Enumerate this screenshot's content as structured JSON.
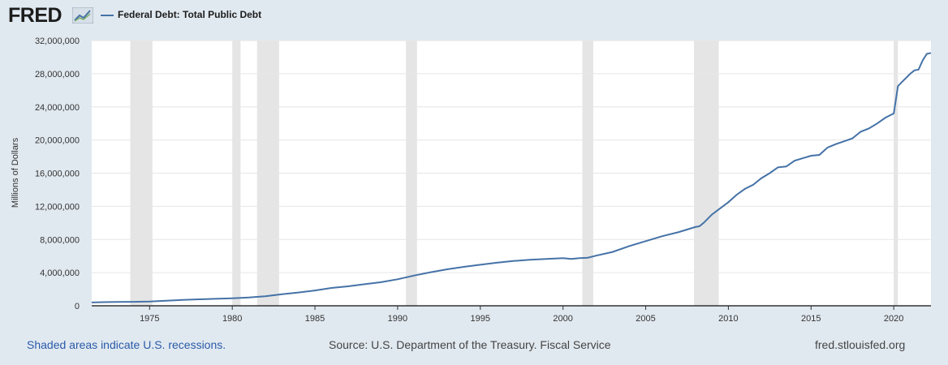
{
  "header": {
    "logo_text": "FRED",
    "series_title": "Federal Debt: Total Public Debt"
  },
  "footer": {
    "recession_note": "Shaded areas indicate U.S. recessions.",
    "source": "Source: U.S. Department of the Treasury. Fiscal Service",
    "site": "fred.stlouisfed.org"
  },
  "colors": {
    "line": "#4572a7",
    "recession": "#e5e5e5",
    "plot_background": "#ffffff",
    "page_background": "#e1e9f0"
  },
  "chart_data": {
    "type": "line",
    "title": "Federal Debt: Total Public Debt",
    "xlabel": "",
    "ylabel": "Millions of Dollars",
    "xlim": [
      1971.5,
      2022.25
    ],
    "ylim": [
      0,
      32000000
    ],
    "y_ticks": [
      0,
      4000000,
      8000000,
      12000000,
      16000000,
      20000000,
      24000000,
      28000000,
      32000000
    ],
    "y_tick_labels": [
      "0",
      "4,000,000",
      "8,000,000",
      "12,000,000",
      "16,000,000",
      "20,000,000",
      "24,000,000",
      "28,000,000",
      "32,000,000"
    ],
    "x_ticks": [
      1975,
      1980,
      1985,
      1990,
      1995,
      2000,
      2005,
      2010,
      2015,
      2020
    ],
    "x_tick_labels": [
      "1975",
      "1980",
      "1985",
      "1990",
      "1995",
      "2000",
      "2005",
      "2010",
      "2015",
      "2020"
    ],
    "recessions": [
      [
        1973.83,
        1975.17
      ],
      [
        1980.0,
        1980.5
      ],
      [
        1981.5,
        1982.83
      ],
      [
        1990.5,
        1991.17
      ],
      [
        2001.17,
        2001.83
      ],
      [
        2007.92,
        2009.42
      ],
      [
        2020.0,
        2020.25
      ]
    ],
    "series": [
      {
        "name": "Federal Debt: Total Public Debt",
        "x": [
          1971.5,
          1972.0,
          1973.0,
          1974.0,
          1975.0,
          1976.0,
          1977.0,
          1978.0,
          1979.0,
          1980.0,
          1981.0,
          1982.0,
          1983.0,
          1984.0,
          1985.0,
          1986.0,
          1987.0,
          1988.0,
          1989.0,
          1990.0,
          1991.0,
          1992.0,
          1993.0,
          1994.0,
          1995.0,
          1996.0,
          1997.0,
          1998.0,
          1999.0,
          2000.0,
          2000.5,
          2001.0,
          2001.5,
          2002.0,
          2003.0,
          2004.0,
          2005.0,
          2006.0,
          2007.0,
          2008.0,
          2008.25,
          2008.5,
          2009.0,
          2010.0,
          2010.5,
          2011.0,
          2011.5,
          2012.0,
          2012.5,
          2013.0,
          2013.5,
          2014.0,
          2014.5,
          2015.0,
          2015.5,
          2016.0,
          2016.5,
          2017.0,
          2017.5,
          2018.0,
          2018.5,
          2019.0,
          2019.5,
          2020.0,
          2020.25,
          2020.5,
          2021.0,
          2021.25,
          2021.5,
          2021.75,
          2022.0,
          2022.25
        ],
        "values": [
          400000,
          430000,
          460000,
          480000,
          520000,
          620000,
          700000,
          780000,
          840000,
          900000,
          1000000,
          1150000,
          1400000,
          1600000,
          1850000,
          2150000,
          2350000,
          2600000,
          2850000,
          3200000,
          3650000,
          4050000,
          4400000,
          4700000,
          4950000,
          5200000,
          5400000,
          5550000,
          5650000,
          5750000,
          5650000,
          5750000,
          5800000,
          6050000,
          6500000,
          7200000,
          7800000,
          8400000,
          8900000,
          9500000,
          9600000,
          10000000,
          11000000,
          12500000,
          13400000,
          14100000,
          14600000,
          15400000,
          16000000,
          16700000,
          16800000,
          17500000,
          17800000,
          18100000,
          18200000,
          19100000,
          19500000,
          19850000,
          20200000,
          21000000,
          21400000,
          22000000,
          22700000,
          23200000,
          26500000,
          27000000,
          28000000,
          28400000,
          28500000,
          29600000,
          30400000,
          30500000
        ]
      }
    ]
  }
}
